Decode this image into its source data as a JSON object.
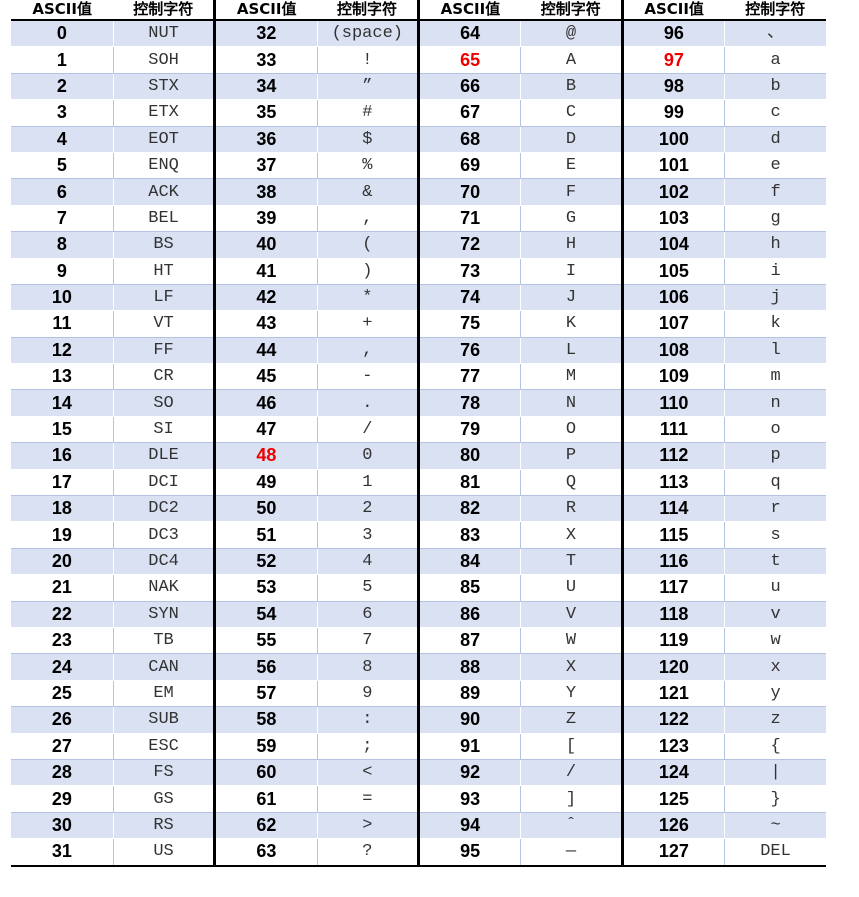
{
  "headers": [
    "ASCII值",
    "控制字符",
    "ASCII值",
    "控制字符",
    "ASCII值",
    "控制字符",
    "ASCII值",
    "控制字符"
  ],
  "highlight_color": "#ee0000",
  "row_shade_color": "#d9e1f2",
  "rows": [
    [
      "0",
      "NUT",
      "32",
      "(space)",
      "64",
      "@",
      "96",
      "、"
    ],
    [
      "1",
      "SOH",
      "33",
      "!",
      "65",
      "A",
      "97",
      "a"
    ],
    [
      "2",
      "STX",
      "34",
      "”",
      "66",
      "B",
      "98",
      "b"
    ],
    [
      "3",
      "ETX",
      "35",
      "#",
      "67",
      "C",
      "99",
      "c"
    ],
    [
      "4",
      "EOT",
      "36",
      "$",
      "68",
      "D",
      "100",
      "d"
    ],
    [
      "5",
      "ENQ",
      "37",
      "%",
      "69",
      "E",
      "101",
      "e"
    ],
    [
      "6",
      "ACK",
      "38",
      "&",
      "70",
      "F",
      "102",
      "f"
    ],
    [
      "7",
      "BEL",
      "39",
      ",",
      "71",
      "G",
      "103",
      "g"
    ],
    [
      "8",
      "BS",
      "40",
      "(",
      "72",
      "H",
      "104",
      "h"
    ],
    [
      "9",
      "HT",
      "41",
      ")",
      "73",
      "I",
      "105",
      "i"
    ],
    [
      "10",
      "LF",
      "42",
      "*",
      "74",
      "J",
      "106",
      "j"
    ],
    [
      "11",
      "VT",
      "43",
      "+",
      "75",
      "K",
      "107",
      "k"
    ],
    [
      "12",
      "FF",
      "44",
      ",",
      "76",
      "L",
      "108",
      "l"
    ],
    [
      "13",
      "CR",
      "45",
      "-",
      "77",
      "M",
      "109",
      "m"
    ],
    [
      "14",
      "SO",
      "46",
      ".",
      "78",
      "N",
      "110",
      "n"
    ],
    [
      "15",
      "SI",
      "47",
      "/",
      "79",
      "O",
      "111",
      "o"
    ],
    [
      "16",
      "DLE",
      "48",
      "0",
      "80",
      "P",
      "112",
      "p"
    ],
    [
      "17",
      "DCI",
      "49",
      "1",
      "81",
      "Q",
      "113",
      "q"
    ],
    [
      "18",
      "DC2",
      "50",
      "2",
      "82",
      "R",
      "114",
      "r"
    ],
    [
      "19",
      "DC3",
      "51",
      "3",
      "83",
      "X",
      "115",
      "s"
    ],
    [
      "20",
      "DC4",
      "52",
      "4",
      "84",
      "T",
      "116",
      "t"
    ],
    [
      "21",
      "NAK",
      "53",
      "5",
      "85",
      "U",
      "117",
      "u"
    ],
    [
      "22",
      "SYN",
      "54",
      "6",
      "86",
      "V",
      "118",
      "v"
    ],
    [
      "23",
      "TB",
      "55",
      "7",
      "87",
      "W",
      "119",
      "w"
    ],
    [
      "24",
      "CAN",
      "56",
      "8",
      "88",
      "X",
      "120",
      "x"
    ],
    [
      "25",
      "EM",
      "57",
      "9",
      "89",
      "Y",
      "121",
      "y"
    ],
    [
      "26",
      "SUB",
      "58",
      ":",
      "90",
      "Z",
      "122",
      "z"
    ],
    [
      "27",
      "ESC",
      "59",
      ";",
      "91",
      "[",
      "123",
      "{"
    ],
    [
      "28",
      "FS",
      "60",
      "<",
      "92",
      "/",
      "124",
      "|"
    ],
    [
      "29",
      "GS",
      "61",
      "=",
      "93",
      "]",
      "125",
      "}"
    ],
    [
      "30",
      "RS",
      "62",
      ">",
      "94",
      "ˆ",
      "126",
      "~"
    ],
    [
      "31",
      "US",
      "63",
      "?",
      "95",
      "—",
      "127",
      "DEL"
    ]
  ],
  "highlighted_values": [
    "48",
    "65",
    "97"
  ]
}
